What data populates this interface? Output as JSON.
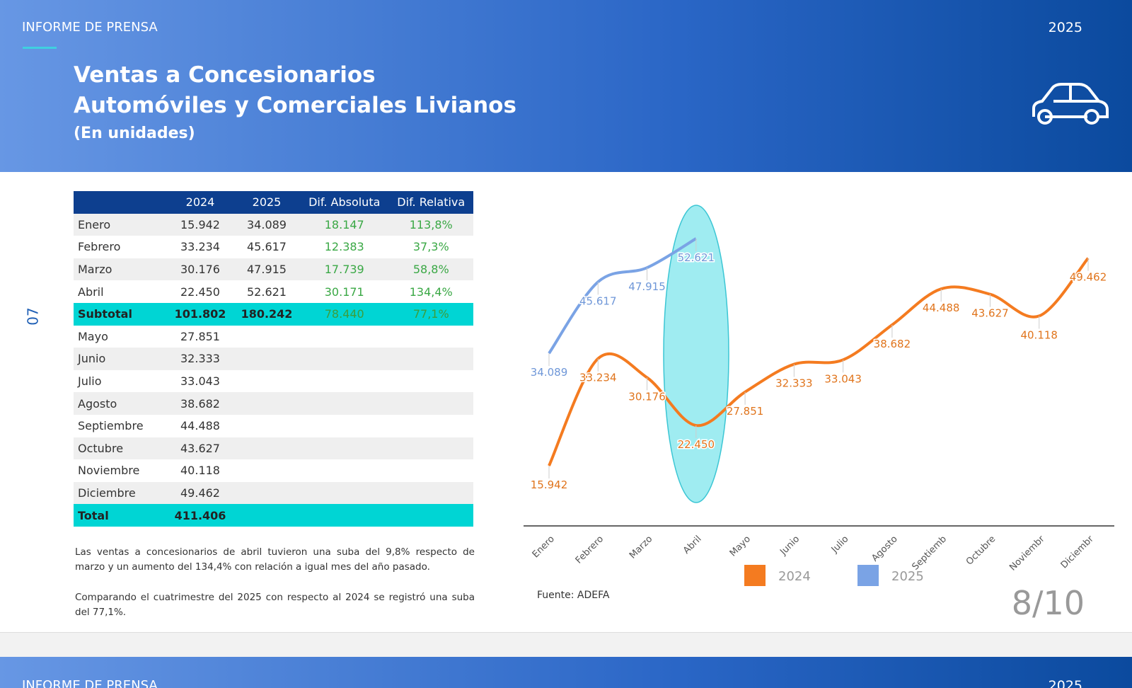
{
  "header": {
    "label": "INFORME DE PRENSA",
    "year": "2025",
    "title_line1": "Ventas a Concesionarios",
    "title_line2": "Automóviles y Comerciales Livianos",
    "subtitle": "(En unidades)"
  },
  "side_number": "07",
  "table": {
    "columns": [
      "",
      "2024",
      "2025",
      "Dif. Absoluta",
      "Dif. Relativa"
    ],
    "rows": [
      [
        "Enero",
        "15.942",
        "34.089",
        "18.147",
        "113,8%"
      ],
      [
        "Febrero",
        "33.234",
        "45.617",
        "12.383",
        "37,3%"
      ],
      [
        "Marzo",
        "30.176",
        "47.915",
        "17.739",
        "58,8%"
      ],
      [
        "Abril",
        "22.450",
        "52.621",
        "30.171",
        "134,4%"
      ],
      [
        "Subtotal",
        "101.802",
        "180.242",
        "78.440",
        "77,1%"
      ],
      [
        "Mayo",
        "27.851"
      ],
      [
        "Junio",
        "32.333"
      ],
      [
        "Julio",
        "33.043"
      ],
      [
        "Agosto",
        "38.682"
      ],
      [
        "Septiembre",
        "44.488"
      ],
      [
        "Octubre",
        "43.627"
      ],
      [
        "Noviembre",
        "40.118"
      ],
      [
        "Diciembre",
        "49.462"
      ],
      [
        "Total",
        "411.406"
      ]
    ]
  },
  "notes": [
    "Las ventas a concesionarios de abril tuvieron una suba del 9,8% respecto de marzo y un aumento del 134,4% con relación a igual mes del año pasado.",
    "Comparando el cuatrimestre del 2025 con respecto al 2024 se registró una suba del 77,1%."
  ],
  "chart_data": {
    "type": "line",
    "categories": [
      "Enero",
      "Febrero",
      "Marzo",
      "Abril",
      "Mayo",
      "Junio",
      "Julio",
      "Agosto",
      "Septiemb",
      "Octubre",
      "Noviembr",
      "Diciembr"
    ],
    "series": [
      {
        "name": "2024",
        "color": "#f47b20",
        "values": [
          15942,
          33234,
          30176,
          22450,
          27851,
          32333,
          33043,
          38682,
          44488,
          43627,
          40118,
          49462
        ],
        "value_labels": [
          "15.942",
          "33.234",
          "30.176",
          "22.450",
          "27.851",
          "32.333",
          "33.043",
          "38.682",
          "44.488",
          "43.627",
          "40.118",
          "49.462"
        ]
      },
      {
        "name": "2025",
        "color": "#7aa3e5",
        "values": [
          34089,
          45617,
          47915,
          52621,
          null,
          null,
          null,
          null,
          null,
          null,
          null,
          null
        ],
        "value_labels": [
          "34.089",
          "45.617",
          "47.915",
          "52.621",
          null,
          null,
          null,
          null,
          null,
          null,
          null,
          null
        ]
      }
    ],
    "source": "Fuente: ADEFA"
  },
  "page_number": "8/10"
}
